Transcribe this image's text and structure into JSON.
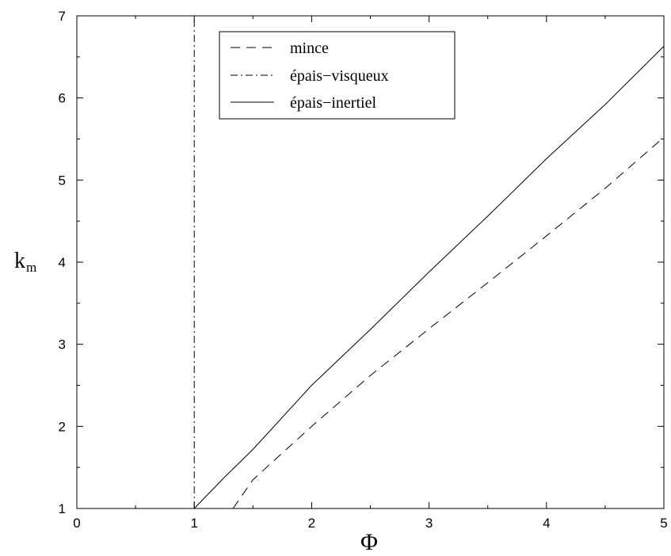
{
  "chart_data": {
    "type": "line",
    "title": "",
    "xlabel": "Φ",
    "ylabel": "k",
    "ylabel_subscript": "m",
    "xlim": [
      0,
      5
    ],
    "ylim": [
      1,
      7
    ],
    "xticks": [
      0,
      1,
      2,
      3,
      4,
      5
    ],
    "yticks": [
      1,
      2,
      3,
      4,
      5,
      6,
      7
    ],
    "grid": false,
    "legend_position": "top-center",
    "series": [
      {
        "name": "mince",
        "style": "dashed",
        "color": "#000000",
        "x": [
          1.33,
          1.5,
          2.0,
          2.5,
          3.0,
          3.5,
          4.0,
          4.5,
          5.0
        ],
        "y": [
          1.0,
          1.35,
          2.0,
          2.62,
          3.19,
          3.75,
          4.32,
          4.9,
          5.52
        ]
      },
      {
        "name": "épais−visqueux",
        "style": "dashdot",
        "color": "#000000",
        "x": [
          1.0,
          1.0
        ],
        "y": [
          1.0,
          7.0
        ]
      },
      {
        "name": "épais−inertiel",
        "style": "solid",
        "color": "#000000",
        "x": [
          1.0,
          1.25,
          1.5,
          2.0,
          2.5,
          3.0,
          3.5,
          4.0,
          4.5,
          5.0
        ],
        "y": [
          1.0,
          1.37,
          1.72,
          2.5,
          3.18,
          3.88,
          4.56,
          5.26,
          5.92,
          6.63
        ]
      }
    ]
  }
}
